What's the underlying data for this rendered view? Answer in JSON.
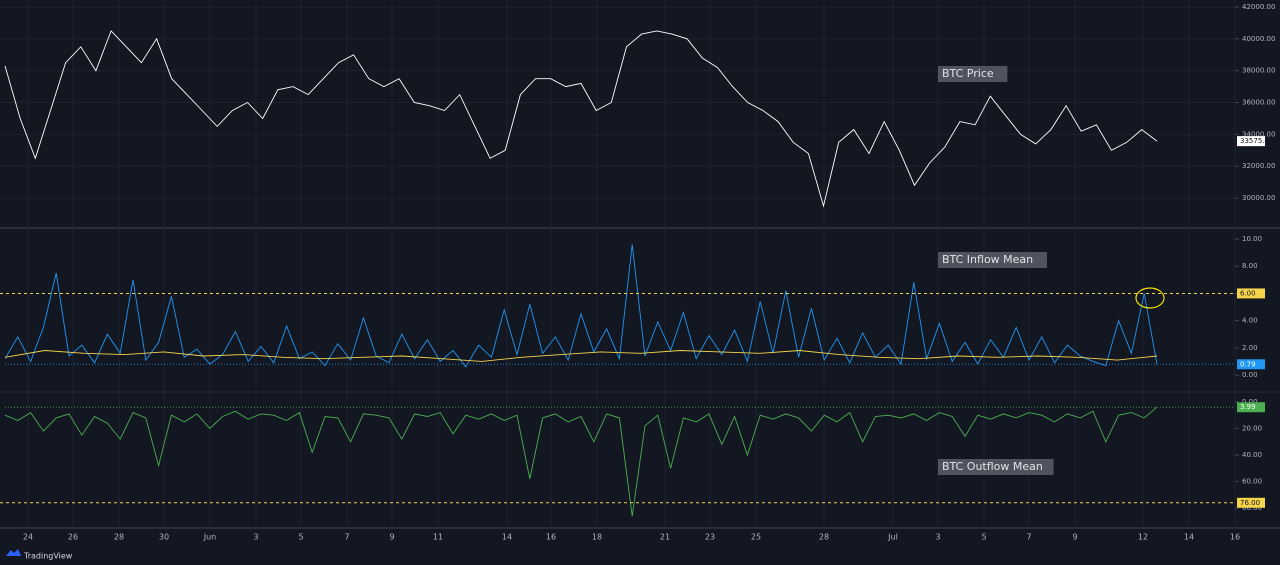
{
  "chart_data": [
    {
      "type": "line",
      "title": "BTC Price",
      "color": "#ffffff",
      "values": [
        38300,
        35000,
        32500,
        35500,
        38500,
        39500,
        38000,
        40500,
        39500,
        38500,
        40000,
        37500,
        36500,
        35500,
        34500,
        35500,
        36000,
        35000,
        36800,
        37000,
        36500,
        37500,
        38500,
        39000,
        37500,
        37000,
        37500,
        36000,
        35800,
        35500,
        36500,
        34500,
        32500,
        33000,
        36500,
        37500,
        37500,
        37000,
        37200,
        35500,
        36000,
        39500,
        40300,
        40500,
        40300,
        40000,
        38800,
        38200,
        37000,
        36000,
        35500,
        34800,
        33500,
        32800,
        29500,
        33500,
        34300,
        32800,
        34800,
        33000,
        30800,
        32200,
        33200,
        34800,
        34600,
        36400,
        35200,
        34000,
        33400,
        34300,
        35800,
        34200,
        34600,
        33000,
        33500,
        34300,
        33575.49
      ],
      "ylim": [
        28120,
        42440
      ],
      "yticks": [
        {
          "value": 30000,
          "label": "30000.00"
        },
        {
          "value": 32000,
          "label": "32000.00"
        },
        {
          "value": 34000,
          "label": "34000.00"
        },
        {
          "value": 36000,
          "label": "36000.00"
        },
        {
          "value": 38000,
          "label": "38000.00"
        },
        {
          "value": 40000,
          "label": "40000.00"
        },
        {
          "value": 42000,
          "label": "42000.00"
        }
      ],
      "grid": true
    },
    {
      "type": "line",
      "title": "BTC Inflow Mean",
      "series": [
        {
          "color": "#2196f3",
          "values": [
            1.2,
            2.8,
            1.0,
            3.5,
            7.5,
            1.4,
            2.2,
            0.9,
            3.0,
            1.6,
            7.0,
            1.1,
            2.4,
            5.8,
            1.3,
            1.9,
            0.8,
            1.5,
            3.2,
            1.0,
            2.1,
            0.9,
            3.6,
            1.2,
            1.7,
            0.7,
            2.3,
            1.1,
            4.2,
            1.4,
            0.9,
            3.0,
            1.2,
            2.6,
            1.0,
            1.8,
            0.6,
            2.2,
            1.3,
            4.8,
            1.5,
            5.2,
            1.6,
            2.8,
            1.1,
            4.5,
            1.7,
            3.4,
            1.2,
            9.6,
            1.4,
            3.9,
            1.8,
            4.6,
            1.2,
            2.9,
            1.5,
            3.3,
            1.0,
            5.4,
            1.6,
            6.2,
            1.3,
            4.9,
            1.1,
            2.7,
            0.9,
            3.1,
            1.3,
            2.2,
            0.8,
            6.8,
            1.2,
            3.8,
            1.0,
            2.4,
            0.8,
            2.6,
            1.3,
            3.5,
            1.1,
            2.8,
            0.9,
            2.2,
            1.4,
            1.0,
            0.7,
            4.0,
            1.6,
            6.0,
            0.79
          ]
        },
        {
          "color": "#f5d34a",
          "values": [
            1.3,
            1.8,
            1.6,
            1.5,
            1.7,
            1.4,
            1.5,
            1.3,
            1.2,
            1.3,
            1.4,
            1.2,
            1.0,
            1.3,
            1.5,
            1.7,
            1.6,
            1.8,
            1.7,
            1.6,
            1.8,
            1.5,
            1.3,
            1.2,
            1.4,
            1.3,
            1.4,
            1.3,
            1.1,
            1.4
          ]
        }
      ],
      "ylim": [
        -1.25,
        10.74
      ],
      "yticks": [
        {
          "value": 0,
          "label": "0.00"
        },
        {
          "value": 2,
          "label": "2.00"
        },
        {
          "value": 4,
          "label": "4.00"
        },
        {
          "value": 6,
          "label": "6.00"
        },
        {
          "value": 8,
          "label": "8.00"
        },
        {
          "value": 10,
          "label": "10.00"
        }
      ],
      "hline": {
        "value": 6,
        "label": "6.00",
        "color": "#f5d34a"
      }
    },
    {
      "type": "line",
      "title": "BTC Outflow Mean",
      "color": "#4caf50",
      "inverted": true,
      "values": [
        10,
        14,
        8,
        22,
        12,
        9,
        25,
        11,
        16,
        28,
        8,
        12,
        48,
        10,
        15,
        9,
        20,
        11,
        7,
        13,
        9,
        10,
        14,
        8,
        38,
        11,
        12,
        30,
        9,
        10,
        12,
        28,
        9,
        11,
        8,
        24,
        10,
        13,
        9,
        14,
        10,
        58,
        12,
        9,
        15,
        11,
        30,
        9,
        12,
        86,
        18,
        10,
        50,
        12,
        15,
        9,
        32,
        11,
        40,
        10,
        13,
        9,
        12,
        22,
        10,
        15,
        8,
        30,
        11,
        10,
        12,
        9,
        14,
        8,
        11,
        26,
        10,
        13,
        9,
        12,
        8,
        10,
        15,
        9,
        12,
        7,
        30,
        10,
        8,
        12,
        3.99
      ],
      "ylim": [
        -7.5,
        95
      ],
      "yticks": [
        {
          "value": 0,
          "label": "0.00"
        },
        {
          "value": 20,
          "label": "20.00"
        },
        {
          "value": 40,
          "label": "40.00"
        },
        {
          "value": 60,
          "label": "60.00"
        },
        {
          "value": 80,
          "label": "80.00"
        }
      ],
      "hline": {
        "value": 76,
        "label": "76.00",
        "color": "#f5d34a"
      }
    }
  ],
  "x_labels": [
    "24",
    "26",
    "28",
    "30",
    "Jun",
    "3",
    "5",
    "7",
    "9",
    "11",
    "14",
    "16",
    "18",
    "21",
    "23",
    "25",
    "28",
    "Jul",
    "3",
    "5",
    "7",
    "9",
    "12",
    "14",
    "16"
  ],
  "brand": "TradingView"
}
